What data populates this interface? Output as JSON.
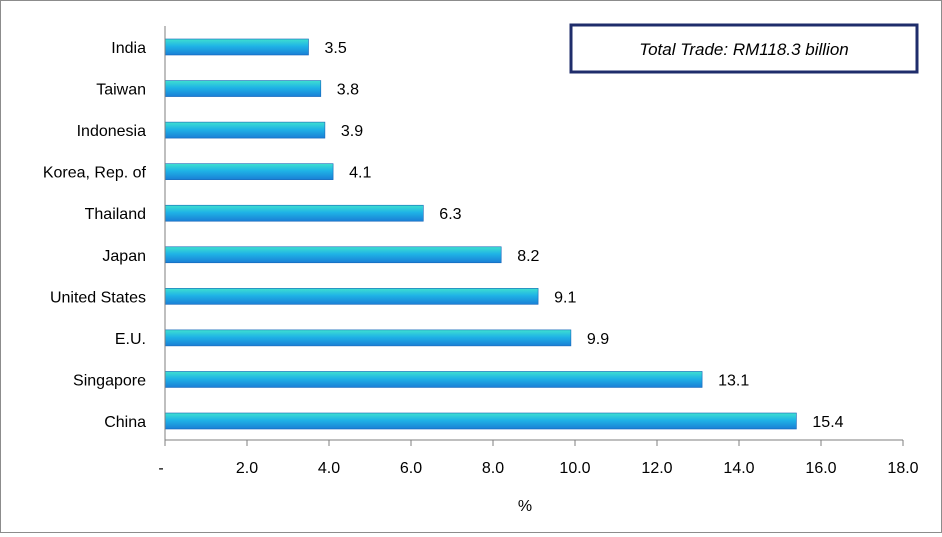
{
  "chart_data": {
    "type": "bar",
    "orientation": "horizontal",
    "categories": [
      "India",
      "Taiwan",
      "Indonesia",
      "Korea, Rep. of",
      "Thailand",
      "Japan",
      "United States",
      "E.U.",
      "Singapore",
      "China"
    ],
    "values": [
      3.5,
      3.8,
      3.9,
      4.1,
      6.3,
      8.2,
      9.1,
      9.9,
      13.1,
      15.4
    ],
    "value_labels": [
      "3.5",
      "3.8",
      "3.9",
      "4.1",
      "6.3",
      "8.2",
      "9.1",
      "9.9",
      "13.1",
      "15.4"
    ],
    "xlabel": "%",
    "ylabel": "",
    "xlim": [
      0,
      18
    ],
    "x_ticks": [
      "-",
      "2.0",
      "4.0",
      "6.0",
      "8.0",
      "10.0",
      "12.0",
      "14.0",
      "16.0",
      "18.0"
    ],
    "annotation": "Total Trade: RM118.3 billion",
    "grid": false,
    "legend": "none",
    "colors": {
      "bar_top": "#3fe0d0",
      "bar_mid": "#1fb3e6",
      "bar_bottom": "#1a7fd6",
      "bar_edge": "#1565b8",
      "box_border": "#1f2d6b",
      "axis": "#7f7f7f"
    }
  }
}
